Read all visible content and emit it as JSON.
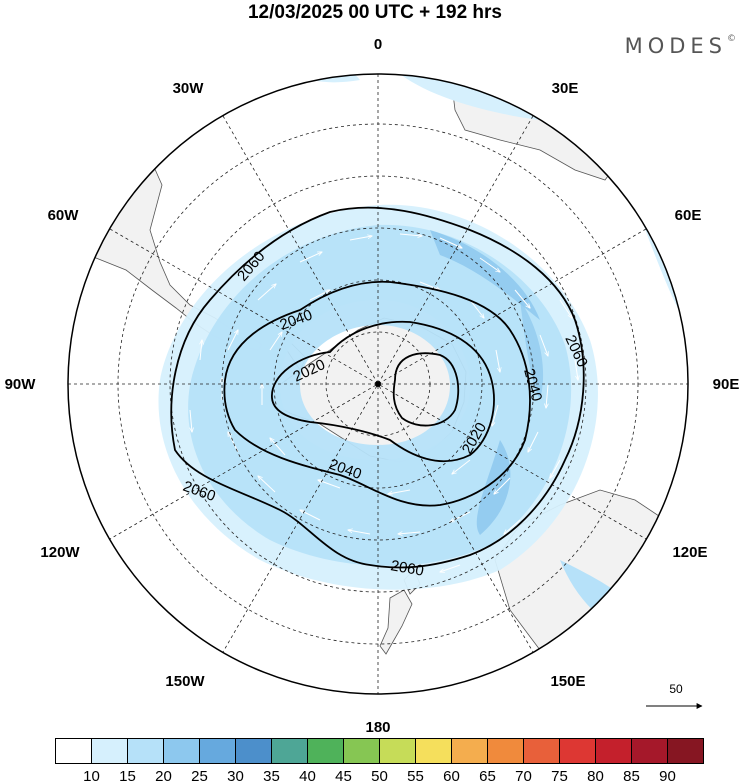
{
  "title": "12/03/2025  00 UTC  + 192 hrs",
  "brand": "MODES",
  "brand_mark": "©",
  "longitude_labels": [
    "0",
    "30E",
    "60E",
    "90E",
    "120E",
    "150E",
    "180",
    "150W",
    "120W",
    "90W",
    "60W",
    "30W"
  ],
  "contour_labels": [
    "2020",
    "2020",
    "2040",
    "2040",
    "2040",
    "2060",
    "2060",
    "2060",
    "2060"
  ],
  "reference_vector": "50",
  "colorbar": {
    "labels": [
      "10",
      "15",
      "20",
      "25",
      "30",
      "35",
      "40",
      "45",
      "50",
      "55",
      "60",
      "65",
      "70",
      "75",
      "80",
      "85",
      "90"
    ],
    "colors": [
      "#ffffff",
      "#d6f0fd",
      "#b6e1f9",
      "#8dc8ee",
      "#66a9de",
      "#4c8fcb",
      "#4ea696",
      "#4fb25a",
      "#86c653",
      "#c6dc58",
      "#f5df5c",
      "#f4ad4e",
      "#f08a3c",
      "#e8603a",
      "#dd3733",
      "#c4202c",
      "#a5182a",
      "#861622"
    ]
  },
  "colors": {
    "land": "#f2f2f2",
    "coast": "#555555",
    "wind_light": "#d6f0fd",
    "wind_mid": "#b6e1f9",
    "wind_strong": "#8dc8ee"
  }
}
